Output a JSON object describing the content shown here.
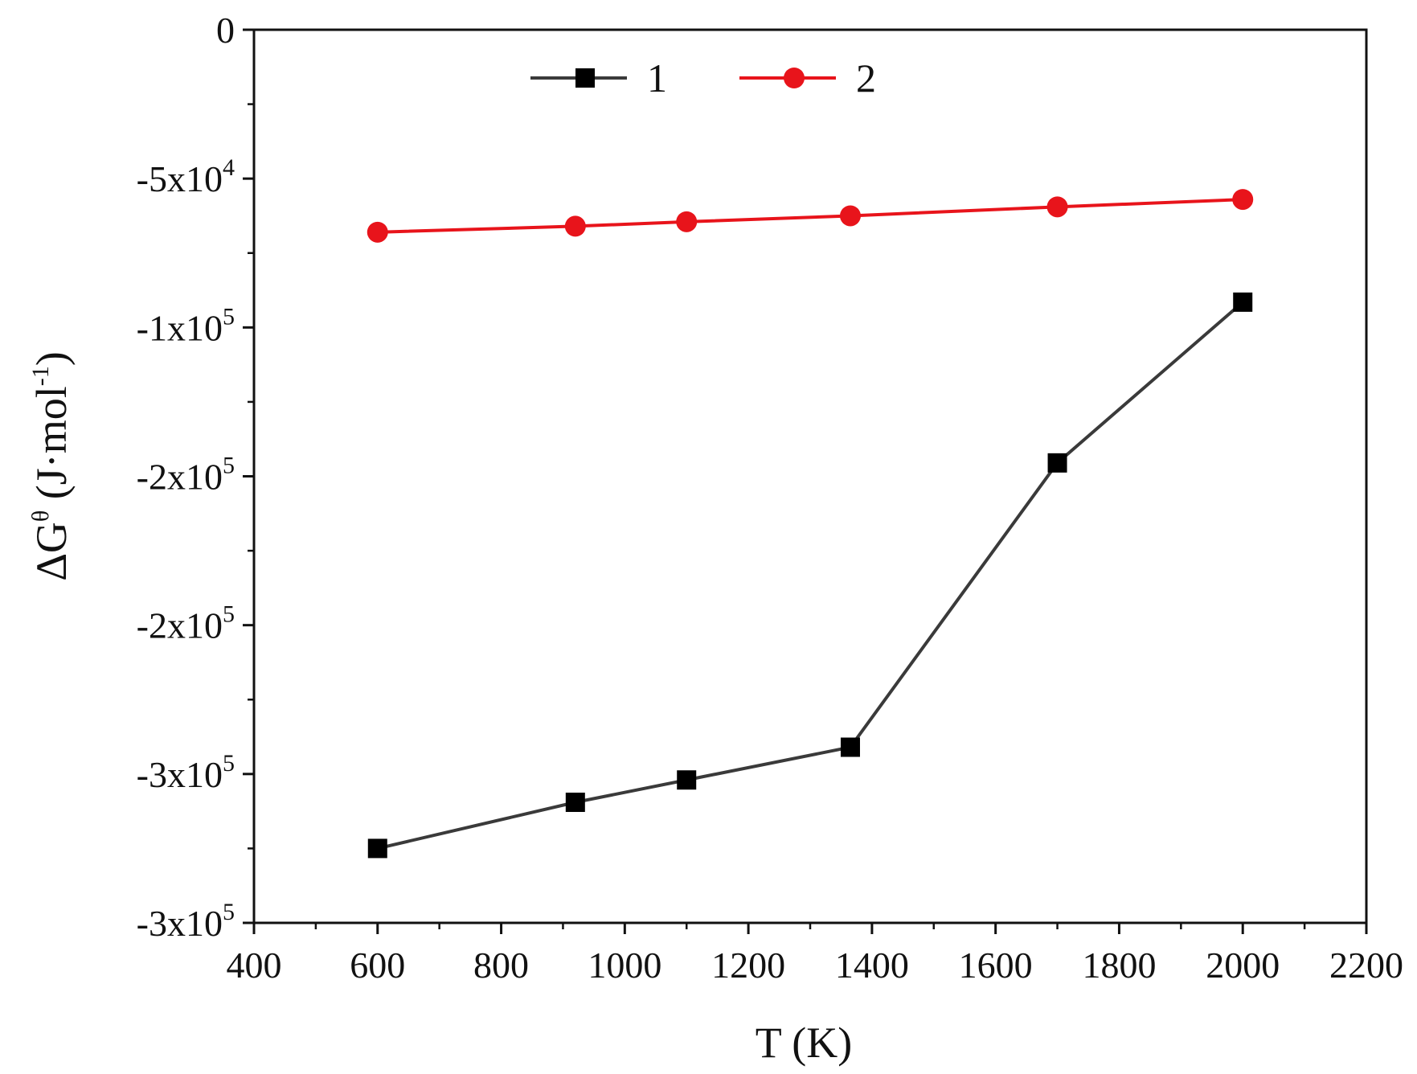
{
  "chart_data": {
    "type": "line",
    "xlabel": "T (K)",
    "ylabel": {
      "main": "ΔG",
      "sup": "θ",
      "unit_open": " (J·mol",
      "unit_sup": "-1",
      "unit_close": ")"
    },
    "xlim": [
      400,
      2200
    ],
    "ylim": [
      -300000,
      0
    ],
    "x_ticks": [
      400,
      600,
      800,
      1000,
      1200,
      1400,
      1600,
      1800,
      2000,
      2200
    ],
    "x_tick_labels": [
      "400",
      "600",
      "800",
      "1000",
      "1200",
      "1400",
      "1600",
      "1800",
      "2000",
      "2200"
    ],
    "y_ticks": [
      {
        "value": 0,
        "base": "0",
        "exp": ""
      },
      {
        "value": -50000,
        "base": "-5x10",
        "exp": "4"
      },
      {
        "value": -100000,
        "base": "-1x10",
        "exp": "5"
      },
      {
        "value": -150000,
        "base": "-2x10",
        "exp": "5"
      },
      {
        "value": -200000,
        "base": "-2x10",
        "exp": "5"
      },
      {
        "value": -250000,
        "base": "-3x10",
        "exp": "5"
      },
      {
        "value": -300000,
        "base": "-3x10",
        "exp": "5"
      }
    ],
    "grid": false,
    "legend_position": "top",
    "series": [
      {
        "name": "1",
        "color": "#3a3a3a",
        "marker": "square",
        "x": [
          600,
          920,
          1100,
          1365,
          1700,
          2000
        ],
        "y": [
          -275000,
          -259500,
          -252000,
          -241000,
          -145500,
          -91500
        ]
      },
      {
        "name": "2",
        "color": "#e8141b",
        "marker": "circle",
        "x": [
          600,
          920,
          1100,
          1365,
          1700,
          2000
        ],
        "y": [
          -68000,
          -66000,
          -64500,
          -62500,
          -59500,
          -57000
        ]
      }
    ]
  }
}
